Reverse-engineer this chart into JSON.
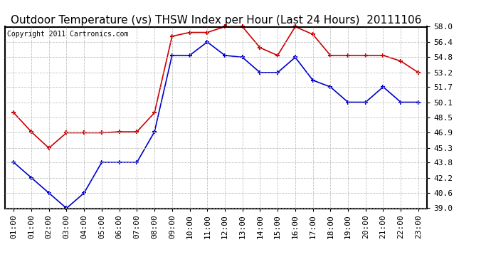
{
  "title": "Outdoor Temperature (vs) THSW Index per Hour (Last 24 Hours)  20111106",
  "copyright": "Copyright 2011 Cartronics.com",
  "x_labels": [
    "01:00",
    "01:00",
    "02:00",
    "03:00",
    "04:00",
    "05:00",
    "06:00",
    "07:00",
    "08:00",
    "09:00",
    "10:00",
    "11:00",
    "12:00",
    "13:00",
    "14:00",
    "15:00",
    "16:00",
    "17:00",
    "18:00",
    "19:00",
    "20:00",
    "21:00",
    "22:00",
    "23:00"
  ],
  "x_indices": [
    0,
    1,
    2,
    3,
    4,
    5,
    6,
    7,
    8,
    9,
    10,
    11,
    12,
    13,
    14,
    15,
    16,
    17,
    18,
    19,
    20,
    21,
    22,
    23
  ],
  "blue_data": [
    43.8,
    42.2,
    40.6,
    39.0,
    40.6,
    43.8,
    43.8,
    43.8,
    47.0,
    55.0,
    55.0,
    56.4,
    55.0,
    54.8,
    53.2,
    53.2,
    54.8,
    52.4,
    51.7,
    50.1,
    50.1,
    51.7,
    50.1,
    50.1
  ],
  "red_data": [
    49.0,
    47.0,
    45.3,
    46.9,
    46.9,
    46.9,
    47.0,
    47.0,
    49.0,
    57.0,
    57.4,
    57.4,
    58.0,
    58.0,
    55.8,
    55.0,
    58.0,
    57.2,
    55.0,
    55.0,
    55.0,
    55.0,
    54.4,
    53.2
  ],
  "y_ticks": [
    39.0,
    40.6,
    42.2,
    43.8,
    45.3,
    46.9,
    48.5,
    50.1,
    51.7,
    53.2,
    54.8,
    56.4,
    58.0
  ],
  "y_min": 39.0,
  "y_max": 58.0,
  "bg_color": "#ffffff",
  "plot_bg_color": "#ffffff",
  "grid_color": "#bbbbbb",
  "blue_color": "#0000cc",
  "red_color": "#cc0000",
  "title_fontsize": 11,
  "tick_fontsize": 8,
  "copyright_fontsize": 7
}
